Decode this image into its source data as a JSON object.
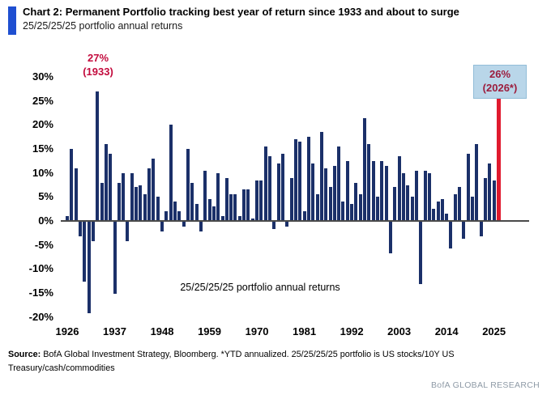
{
  "header": {
    "title": "Chart 2: Permanent Portfolio tracking best year of return since 1933 and about to surge",
    "subtitle": "25/25/25/25 portfolio annual returns"
  },
  "chart_data": {
    "type": "bar",
    "title": "25/25/25/25 portfolio annual returns",
    "center_label": "25/25/25/25 portfolio annual returns",
    "x_start_year": 1926,
    "x_end_year": 2026,
    "highlight_year": 2026,
    "ylim": [
      -20,
      30
    ],
    "grid": false,
    "ytick_labels": [
      "30%",
      "25%",
      "20%",
      "15%",
      "10%",
      "5%",
      "0%",
      "-5%",
      "-10%",
      "-15%",
      "-20%"
    ],
    "ytick_values": [
      30,
      25,
      20,
      15,
      10,
      5,
      0,
      -5,
      -10,
      -15,
      -20
    ],
    "xtick_years": [
      1926,
      1937,
      1948,
      1959,
      1970,
      1981,
      1992,
      2003,
      2014,
      2025
    ],
    "years": [
      1926,
      1927,
      1928,
      1929,
      1930,
      1931,
      1932,
      1933,
      1934,
      1935,
      1936,
      1937,
      1938,
      1939,
      1940,
      1941,
      1942,
      1943,
      1944,
      1945,
      1946,
      1947,
      1948,
      1949,
      1950,
      1951,
      1952,
      1953,
      1954,
      1955,
      1956,
      1957,
      1958,
      1959,
      1960,
      1961,
      1962,
      1963,
      1964,
      1965,
      1966,
      1967,
      1968,
      1969,
      1970,
      1971,
      1972,
      1973,
      1974,
      1975,
      1976,
      1977,
      1978,
      1979,
      1980,
      1981,
      1982,
      1983,
      1984,
      1985,
      1986,
      1987,
      1988,
      1989,
      1990,
      1991,
      1992,
      1993,
      1994,
      1995,
      1996,
      1997,
      1998,
      1999,
      2000,
      2001,
      2002,
      2003,
      2004,
      2005,
      2006,
      2007,
      2008,
      2009,
      2010,
      2011,
      2012,
      2013,
      2014,
      2015,
      2016,
      2017,
      2018,
      2019,
      2020,
      2021,
      2022,
      2023,
      2024,
      2025,
      2026
    ],
    "values": [
      1,
      15,
      11,
      -3,
      -12.5,
      -19,
      -4,
      27,
      8,
      16,
      14,
      -15,
      8,
      10,
      -4,
      10,
      7,
      7.5,
      5.5,
      11,
      13,
      5,
      -2,
      2,
      20,
      4,
      2,
      -1,
      15,
      8,
      3.5,
      -2,
      10.5,
      4.5,
      3,
      10,
      1,
      9,
      5.5,
      5.5,
      1,
      6.5,
      6.5,
      0.5,
      8.5,
      8.5,
      15.5,
      13.5,
      -1.5,
      12,
      14,
      -1,
      9,
      17,
      16.5,
      2,
      17.5,
      12,
      5.5,
      18.5,
      11,
      7,
      11.5,
      15.5,
      4,
      12.5,
      3.5,
      8,
      5.5,
      21.5,
      16,
      12.5,
      5,
      12.5,
      11.5,
      -6.5,
      7,
      13.5,
      10,
      7.5,
      5,
      10.5,
      -13,
      10.5,
      10,
      2.5,
      4,
      4.5,
      1.5,
      -5.5,
      5.5,
      7,
      -3.5,
      14,
      5,
      16,
      -3,
      9,
      12,
      8.5,
      26
    ],
    "annotations": [
      {
        "year": 1933,
        "style": "text",
        "lines": [
          "27%",
          "(1933)"
        ]
      },
      {
        "year": 2026,
        "style": "box",
        "lines": [
          "26%",
          "(2026*)"
        ]
      }
    ]
  },
  "footer": {
    "source_label": "Source:",
    "source_text": " BofA Global Investment Strategy, Bloomberg. *YTD annualized. 25/25/25/25 portfolio is US stocks/10Y US Treasury/cash/commodities",
    "brand": "BofA GLOBAL RESEARCH"
  },
  "colors": {
    "accent_blue": "#1f4fd1",
    "bar_navy": "#1b3069",
    "bar_red": "#e01a2e",
    "annotation_red": "#c30b3d",
    "box_text_red": "#9c1d3d",
    "box_bg_blue": "#b9d6e9",
    "box_border_blue": "#92bdd8",
    "axis_gray": "#4a4a4a",
    "brand_gray": "#8e9aa6"
  }
}
